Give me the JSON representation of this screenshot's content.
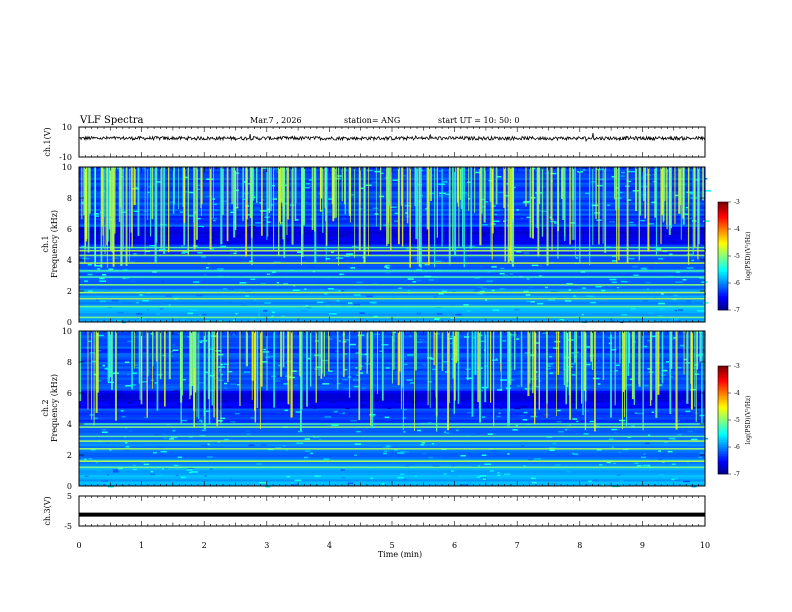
{
  "header": {
    "title": "VLF Spectra",
    "date": "Mar.7  , 2026",
    "station": "station= ANG",
    "start": "start  UT  =   10: 50: 0"
  },
  "chart_data": [
    {
      "type": "line",
      "name": "ch1-waveform",
      "ylabel": "ch.1(V)",
      "xlim": [
        0,
        10
      ],
      "ylim": [
        -10,
        10
      ],
      "yticks": [
        "10",
        "-10"
      ],
      "baseline": 2.5,
      "noise_amplitude": 1.2,
      "color": "#000000"
    },
    {
      "type": "heatmap",
      "name": "ch1-spectrogram",
      "ylabel": "ch.1\nFrequency  (kHz)",
      "xlim": [
        0,
        10
      ],
      "ylim": [
        0,
        10
      ],
      "yticks": [
        "0",
        "2",
        "4",
        "6",
        "8",
        "10"
      ],
      "colorbar": {
        "label": "log(PSD)(V²/Hz)",
        "range": [
          -7,
          -3
        ],
        "ticks": [
          "-3",
          "-4",
          "-5",
          "-6",
          "-7"
        ]
      },
      "bright_bands_khz": [
        0.3,
        1.0,
        1.5,
        1.9,
        2.4,
        2.9,
        3.3,
        3.8,
        4.3,
        4.6,
        4.8
      ]
    },
    {
      "type": "heatmap",
      "name": "ch2-spectrogram",
      "ylabel": "ch.2\nFrequency  (kHz)",
      "xlim": [
        0,
        10
      ],
      "ylim": [
        0,
        10
      ],
      "yticks": [
        "0",
        "2",
        "4",
        "6",
        "8",
        "10"
      ],
      "colorbar": {
        "label": "log(PSD)(V²/Hz)",
        "range": [
          -7,
          -3
        ],
        "ticks": [
          "-3",
          "-4",
          "-5",
          "-6",
          "-7"
        ]
      },
      "bright_bands_khz": [
        1.2,
        1.6,
        2.4,
        2.9,
        3.2,
        3.8,
        4.0
      ]
    },
    {
      "type": "line",
      "name": "ch3-waveform",
      "ylabel": "ch.3(V)",
      "xlim": [
        0,
        10
      ],
      "ylim": [
        -5,
        5
      ],
      "yticks": [
        "5",
        "-5"
      ],
      "value": -1.2,
      "color": "#000000",
      "xlabel": "Time  (min)",
      "xticks": [
        "0",
        "1",
        "2",
        "3",
        "4",
        "5",
        "6",
        "7",
        "8",
        "9",
        "10"
      ]
    }
  ]
}
